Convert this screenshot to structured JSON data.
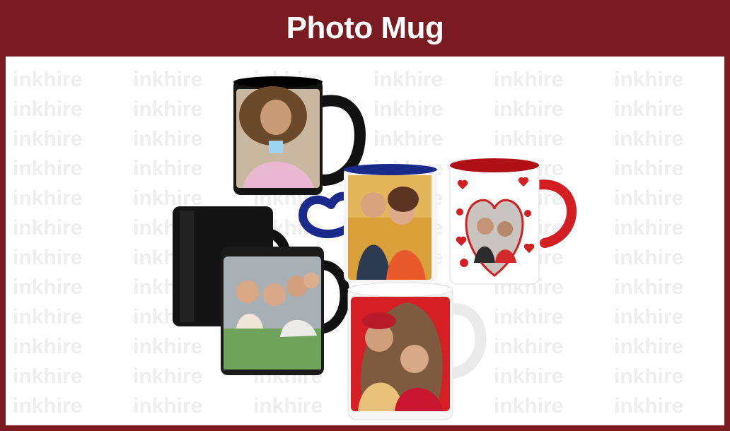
{
  "page": {
    "title": "Photo Mug",
    "watermark_text": "inkhire"
  },
  "colors": {
    "frame": "#7a1a21",
    "stage": "#ffffff",
    "watermark": "#eeeeee",
    "mug_black": "#151515",
    "mug_blue": "#1a2a8a",
    "mug_red": "#d41f22",
    "mug_white": "#f6f6f6"
  },
  "products": [
    {
      "name": "black-inner-mug-girl"
    },
    {
      "name": "blue-heart-handle-mug-couple"
    },
    {
      "name": "red-inner-heart-mug-couple"
    },
    {
      "name": "magic-color-changing-mug-family"
    },
    {
      "name": "white-mug-wedding-couple"
    }
  ]
}
